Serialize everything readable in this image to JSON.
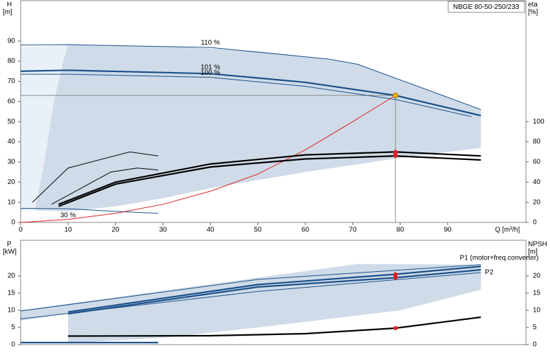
{
  "chart_data": [
    {
      "type": "line",
      "title": "NBGE 80-50-250/233",
      "ylabel": "H",
      "yunit": "[m]",
      "y2label": "eta",
      "y2unit": "[%]",
      "xlabel": "Q [m³/h]",
      "xlim": [
        0,
        106.5
      ],
      "xticks": [
        0,
        10,
        20,
        30,
        40,
        50,
        60,
        70,
        80,
        90
      ],
      "ylim": [
        0,
        110
      ],
      "yticks": [
        0,
        10,
        20,
        30,
        40,
        50,
        60,
        70,
        80,
        90
      ],
      "y2lim": [
        0,
        220
      ],
      "y2ticks": [
        0,
        20,
        40,
        60,
        80,
        100
      ],
      "areas": [
        {
          "color": "#e9f0f7",
          "x": [
            0,
            0,
            10,
            9,
            7,
            5,
            3
          ],
          "values": [
            6,
            87,
            88,
            80,
            60,
            30,
            6
          ]
        },
        {
          "color": "#cfdbe8",
          "x": [
            3,
            5,
            7,
            9,
            10,
            30,
            50,
            65,
            71,
            97,
            97,
            80,
            60,
            40,
            30,
            20,
            10,
            3
          ],
          "values": [
            6,
            30,
            60,
            80,
            88,
            87.5,
            85,
            81,
            78.5,
            56,
            37,
            32,
            25,
            17,
            12,
            8,
            5.5,
            6
          ]
        }
      ],
      "series": [
        {
          "label": "110 %",
          "color": "#1a4f8a",
          "style": "thin",
          "x": [
            0,
            10,
            40,
            65,
            71,
            97
          ],
          "values": [
            88,
            88.2,
            86.8,
            81,
            78.5,
            56
          ]
        },
        {
          "label": "101 %",
          "color": "#1a4f8a",
          "style": "thick",
          "x": [
            0,
            10,
            40,
            60,
            79,
            97
          ],
          "values": [
            75,
            75.5,
            73.8,
            69.5,
            63,
            53
          ]
        },
        {
          "label": "100 %",
          "color": "#1a4f8a",
          "style": "thin",
          "x": [
            0,
            10,
            40,
            60,
            79,
            95
          ],
          "values": [
            73.5,
            73.5,
            72,
            67.5,
            61,
            52.5
          ]
        },
        {
          "label": "30 %",
          "color": "#1a4f8a",
          "style": "thin",
          "x": [
            0,
            10,
            20,
            29
          ],
          "values": [
            7,
            6.8,
            5.5,
            4.5
          ]
        },
        {
          "color": "#e02020",
          "style": "thin",
          "x": [
            0,
            10,
            20,
            30,
            40,
            50,
            60,
            70,
            79
          ],
          "values": [
            0,
            1.5,
            4.5,
            9,
            15.5,
            24,
            36,
            50,
            63
          ]
        },
        {
          "color": "#000000",
          "style": "thick",
          "axis": "y2",
          "x": [
            8,
            20,
            40,
            60,
            79,
            97
          ],
          "values": [
            18,
            40,
            58,
            67,
            70,
            66
          ]
        },
        {
          "color": "#000000",
          "style": "thick",
          "axis": "y2",
          "x": [
            8,
            20,
            40,
            60,
            79,
            97
          ],
          "values": [
            16,
            38,
            55,
            63,
            66,
            62
          ]
        },
        {
          "color": "#000000",
          "style": "thin",
          "axis": "y2",
          "x": [
            2.5,
            10,
            23,
            29
          ],
          "values": [
            20,
            54,
            70,
            66
          ]
        },
        {
          "color": "#000000",
          "style": "thin",
          "axis": "y2",
          "x": [
            6.5,
            19,
            24.6,
            29
          ],
          "values": [
            18,
            50,
            54,
            52
          ]
        }
      ],
      "points": [
        {
          "x": 79,
          "y": 70,
          "color": "#e02020",
          "axis": "y2"
        },
        {
          "x": 79,
          "y": 68,
          "color": "#e02020",
          "axis": "y2"
        },
        {
          "x": 79,
          "y": 66,
          "color": "#e02020",
          "axis": "y2"
        }
      ],
      "duty_point": {
        "x": 79,
        "y": 63,
        "color": "#f5b800"
      }
    },
    {
      "type": "line",
      "ylabel": "P",
      "yunit": "[kW]",
      "y2label": "NPSH",
      "y2unit": "[m]",
      "xlim": [
        0,
        106.5
      ],
      "ylim": [
        0,
        30.4
      ],
      "yticks": [
        0,
        5,
        10,
        15,
        20
      ],
      "y2lim": [
        0,
        30.4
      ],
      "y2ticks": [
        0,
        5,
        10,
        15,
        20
      ],
      "areas": [
        {
          "color": "#cfdbe8",
          "x": [
            0,
            71,
            97,
            97,
            80,
            50,
            30,
            10,
            10,
            0
          ],
          "values": [
            10,
            23.5,
            23.3,
            16,
            10,
            5,
            2,
            0.5,
            9,
            7
          ]
        }
      ],
      "series": [
        {
          "color": "#1a4f8a",
          "style": "thin",
          "x": [
            0,
            50,
            97
          ],
          "values": [
            9.8,
            19,
            23.3
          ]
        },
        {
          "label": "P1 (motor+freq.converter)",
          "color": "#1a4f8a",
          "style": "thick",
          "x": [
            10,
            50,
            79,
            97
          ],
          "values": [
            9.5,
            17.5,
            20.5,
            22.8
          ]
        },
        {
          "label": "P2",
          "color": "#1a4f8a",
          "style": "thick",
          "x": [
            10,
            50,
            79,
            97
          ],
          "values": [
            9,
            16.8,
            19.5,
            21.8
          ]
        },
        {
          "color": "#1a4f8a",
          "style": "thin",
          "x": [
            0,
            50,
            97
          ],
          "values": [
            7.5,
            15.5,
            21
          ]
        },
        {
          "color": "#1a4f8a",
          "style": "thick",
          "x": [
            0,
            29
          ],
          "values": [
            0.6,
            0.6
          ]
        },
        {
          "color": "#000000",
          "style": "thick",
          "axis": "y2",
          "x": [
            10,
            40,
            60,
            79,
            97
          ],
          "values": [
            2.5,
            2.6,
            3.2,
            4.8,
            8
          ]
        }
      ],
      "points": [
        {
          "x": 79,
          "y": 20.5,
          "color": "#e02020"
        },
        {
          "x": 79,
          "y": 20,
          "color": "#e02020"
        },
        {
          "x": 79,
          "y": 19.5,
          "color": "#e02020"
        },
        {
          "x": 79,
          "y": 4.8,
          "color": "#e02020",
          "axis": "y2"
        }
      ]
    }
  ]
}
